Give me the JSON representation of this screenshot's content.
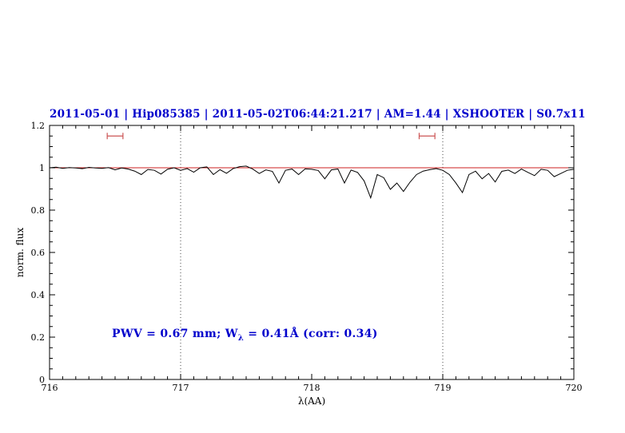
{
  "title": "2011-05-01 | Hip085385 | 2011-05-02T06:44:21.217 | AM=1.44 | XSHOOTER | S0.7x11",
  "annotation": {
    "pre": "PWV  =  0.67  mm;  W",
    "sub": "λ",
    "post": "  =  0.41Å  (corr:  0.34)"
  },
  "axes": {
    "xlabel": "λ(AA)",
    "ylabel": "norm. flux"
  },
  "colors": {
    "title": "#0000cc",
    "annotation": "#0000cc",
    "spectrum": "#000000",
    "continuum": "#cc2222",
    "marker": "#cc5555",
    "vline": "#444444",
    "axis": "#000000"
  },
  "chart_data": {
    "type": "line",
    "title": "2011-05-01 | Hip085385 | 2011-05-02T06:44:21.217 | AM=1.44 | XSHOOTER | S0.7x11",
    "xlabel": "λ(AA)",
    "ylabel": "norm. flux",
    "xlim": [
      716,
      720
    ],
    "ylim": [
      0,
      1.2
    ],
    "xticks": [
      716,
      717,
      718,
      719,
      720
    ],
    "yticks": [
      0,
      0.2,
      0.4,
      0.6,
      0.8,
      1,
      1.2
    ],
    "x_minor_step": 0.1,
    "y_minor_step": 0.05,
    "grid": false,
    "vlines": [
      717,
      719
    ],
    "continuum_y": 1.0,
    "range_markers": [
      {
        "x1": 716.44,
        "x2": 716.56,
        "y": 1.15
      },
      {
        "x1": 718.82,
        "x2": 718.94,
        "y": 1.15
      }
    ],
    "x": [
      716.0,
      716.05,
      716.1,
      716.15,
      716.2,
      716.25,
      716.3,
      716.35,
      716.4,
      716.45,
      716.5,
      716.55,
      716.6,
      716.65,
      716.7,
      716.75,
      716.8,
      716.85,
      716.9,
      716.95,
      717.0,
      717.05,
      717.1,
      717.15,
      717.2,
      717.25,
      717.3,
      717.35,
      717.4,
      717.45,
      717.5,
      717.55,
      717.6,
      717.65,
      717.7,
      717.75,
      717.8,
      717.85,
      717.9,
      717.95,
      718.0,
      718.05,
      718.1,
      718.15,
      718.2,
      718.25,
      718.3,
      718.35,
      718.4,
      718.45,
      718.5,
      718.55,
      718.6,
      718.65,
      718.7,
      718.75,
      718.8,
      718.85,
      718.9,
      718.95,
      719.0,
      719.05,
      719.1,
      719.15,
      719.2,
      719.25,
      719.3,
      719.35,
      719.4,
      719.45,
      719.5,
      719.55,
      719.6,
      719.65,
      719.7,
      719.75,
      719.8,
      719.85,
      719.9,
      719.95,
      720.0
    ],
    "y": [
      1.0,
      1.003,
      0.997,
      1.001,
      0.999,
      0.996,
      1.002,
      0.999,
      0.997,
      1.001,
      0.99,
      0.999,
      0.994,
      0.984,
      0.968,
      0.992,
      0.988,
      0.97,
      0.993,
      1.0,
      0.988,
      0.996,
      0.979,
      1.0,
      1.004,
      0.968,
      0.991,
      0.974,
      0.996,
      1.005,
      1.008,
      0.994,
      0.973,
      0.99,
      0.983,
      0.928,
      0.988,
      0.994,
      0.968,
      0.995,
      0.993,
      0.987,
      0.948,
      0.99,
      0.994,
      0.928,
      0.989,
      0.978,
      0.938,
      0.858,
      0.968,
      0.953,
      0.898,
      0.928,
      0.888,
      0.932,
      0.968,
      0.984,
      0.991,
      0.996,
      0.988,
      0.968,
      0.928,
      0.883,
      0.968,
      0.984,
      0.948,
      0.973,
      0.933,
      0.983,
      0.989,
      0.973,
      0.994,
      0.978,
      0.963,
      0.993,
      0.988,
      0.958,
      0.973,
      0.988,
      0.993
    ]
  }
}
